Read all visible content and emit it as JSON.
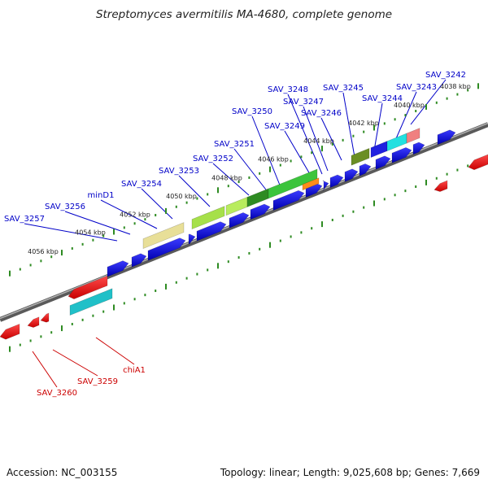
{
  "title": "Streptomyces avermitilis MA-4680, complete genome",
  "footer": {
    "accession": "Accession: NC_003155",
    "summary": "Topology: linear; Length: 9,025,608 bp; Genes: 7,669"
  },
  "colors": {
    "axis": "#808080",
    "tick": "#2e8b22",
    "forward_label": "#0000c8",
    "reverse_label": "#cc0000",
    "tick_label": "#222222"
  },
  "kbp_marks": [
    "4038 kbp",
    "4040 kbp",
    "4042 kbp",
    "4044 kbp",
    "4046 kbp",
    "4048 kbp",
    "4050 kbp",
    "4052 kbp",
    "4054 kbp",
    "4056 kbp"
  ],
  "forward_gene_labels": [
    "SAV_3242",
    "SAV_3243",
    "SAV_3244",
    "SAV_3245",
    "SAV_3246",
    "SAV_3247",
    "SAV_3248",
    "SAV_3249",
    "SAV_3250",
    "SAV_3251",
    "SAV_3252",
    "SAV_3253",
    "SAV_3254",
    "minD1",
    "SAV_3256",
    "SAV_3257"
  ],
  "reverse_gene_labels": [
    "chiA1",
    "SAV_3259",
    "SAV_3260"
  ]
}
